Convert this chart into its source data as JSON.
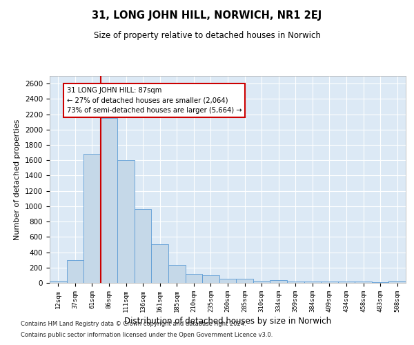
{
  "title": "31, LONG JOHN HILL, NORWICH, NR1 2EJ",
  "subtitle": "Size of property relative to detached houses in Norwich",
  "xlabel": "Distribution of detached houses by size in Norwich",
  "ylabel": "Number of detached properties",
  "bar_color": "#c5d8e8",
  "bar_edge_color": "#5b9bd5",
  "categories": [
    "12sqm",
    "37sqm",
    "61sqm",
    "86sqm",
    "111sqm",
    "136sqm",
    "161sqm",
    "185sqm",
    "210sqm",
    "235sqm",
    "260sqm",
    "285sqm",
    "310sqm",
    "334sqm",
    "359sqm",
    "384sqm",
    "409sqm",
    "434sqm",
    "458sqm",
    "483sqm",
    "508sqm"
  ],
  "values": [
    25,
    300,
    1680,
    2150,
    1600,
    960,
    500,
    235,
    120,
    100,
    50,
    50,
    30,
    35,
    20,
    20,
    20,
    15,
    15,
    5,
    25
  ],
  "ylim": [
    0,
    2700
  ],
  "yticks": [
    0,
    200,
    400,
    600,
    800,
    1000,
    1200,
    1400,
    1600,
    1800,
    2000,
    2200,
    2400,
    2600
  ],
  "vline_index": 3,
  "vline_color": "#cc0000",
  "annotation_text": "31 LONG JOHN HILL: 87sqm\n← 27% of detached houses are smaller (2,064)\n73% of semi-detached houses are larger (5,664) →",
  "annotation_box_color": "#ffffff",
  "annotation_box_edge": "#cc0000",
  "background_color": "#dce9f5",
  "footer1": "Contains HM Land Registry data © Crown copyright and database right 2024.",
  "footer2": "Contains public sector information licensed under the Open Government Licence v3.0."
}
